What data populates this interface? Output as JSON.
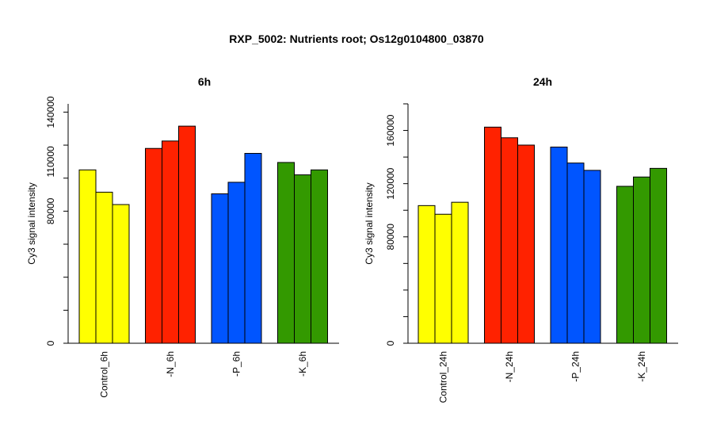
{
  "chart_data": {
    "title": "RXP_5002: Nutrients root; Os12g0104800_03870",
    "panels": [
      {
        "type": "bar",
        "title": "6h",
        "ylabel": "Cy3 signal intensity",
        "yticks": [
          "0",
          "80000",
          "110000",
          "140000"
        ],
        "ylim": [
          0,
          145000
        ],
        "categories": [
          "Control_6h",
          "-N_6h",
          "-P_6h",
          "-K_6h"
        ],
        "colors": [
          "#FFFF00",
          "#FF2200",
          "#0055FF",
          "#339900"
        ],
        "series_values": [
          [
            105000,
            91500,
            84000
          ],
          [
            118000,
            122500,
            131500
          ],
          [
            90500,
            97500,
            115000
          ],
          [
            109500,
            102000,
            105000
          ]
        ]
      },
      {
        "type": "bar",
        "title": "24h",
        "ylabel": "Cy3 signal intensity",
        "yticks": [
          "0",
          "80000",
          "120000",
          "160000"
        ],
        "ylim": [
          0,
          180000
        ],
        "categories": [
          "Control_24h",
          "-N_24h",
          "-P_24h",
          "-K_24h"
        ],
        "colors": [
          "#FFFF00",
          "#FF2200",
          "#0055FF",
          "#339900"
        ],
        "series_values": [
          [
            103500,
            97000,
            106000
          ],
          [
            162500,
            154500,
            149000
          ],
          [
            147500,
            135500,
            130000
          ],
          [
            118000,
            125000,
            131500
          ]
        ]
      }
    ]
  }
}
